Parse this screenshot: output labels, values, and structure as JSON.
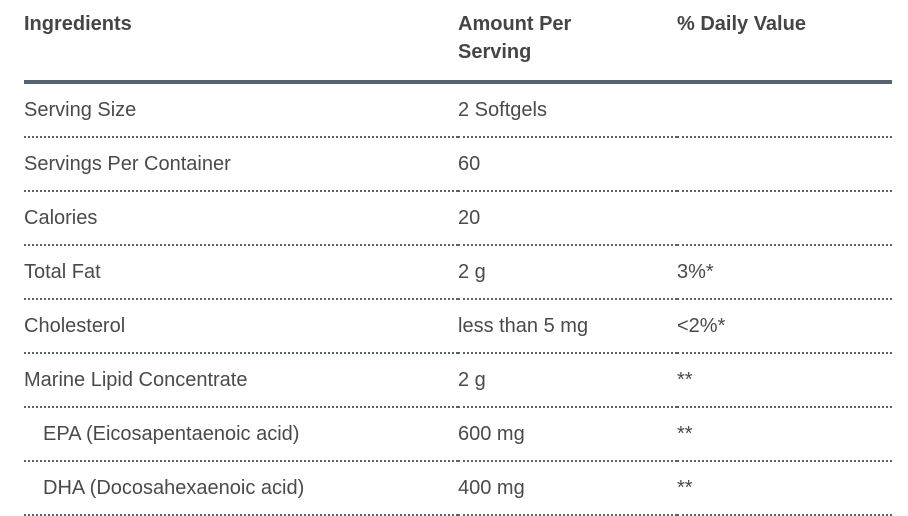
{
  "colors": {
    "rule": "#56636f",
    "header_text": "#454547",
    "body_text": "#4a4a4c",
    "background": "#ffffff"
  },
  "table": {
    "headers": [
      "Ingredients",
      "Amount Per Serving",
      "% Daily Value"
    ],
    "rows": [
      {
        "ingredient": "Serving Size",
        "amount": "2 Softgels",
        "daily_value": ""
      },
      {
        "ingredient": "Servings Per Container",
        "amount": "60",
        "daily_value": ""
      },
      {
        "ingredient": "Calories",
        "amount": "20",
        "daily_value": ""
      },
      {
        "ingredient": "Total Fat",
        "amount": "2 g",
        "daily_value": "3%*"
      },
      {
        "ingredient": "Cholesterol",
        "amount": "less than 5 mg",
        "daily_value": "<2%*"
      },
      {
        "ingredient": "Marine Lipid Concentrate",
        "amount": "2 g",
        "daily_value": "**"
      },
      {
        "ingredient": "EPA (Eicosapentaenoic acid)",
        "amount": "600 mg",
        "daily_value": "**"
      },
      {
        "ingredient": "DHA (Docosahexaenoic acid)",
        "amount": "400 mg",
        "daily_value": "**"
      }
    ]
  }
}
